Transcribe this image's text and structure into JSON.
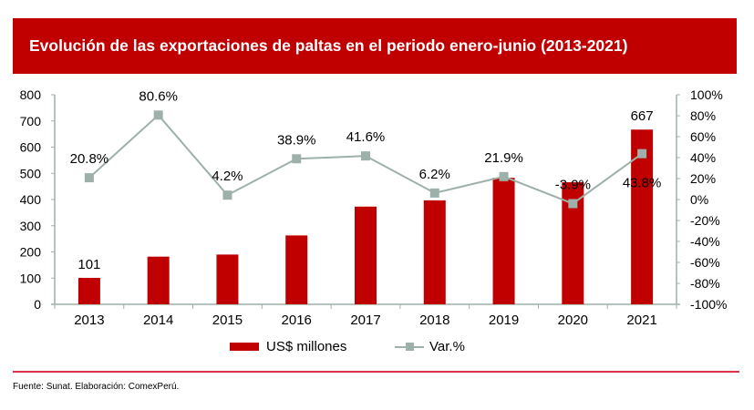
{
  "header": {
    "title": "Evolución de las exportaciones de paltas en el periodo enero-junio (2013-2021)"
  },
  "legend": {
    "bar_label": "US$ millones",
    "line_label": "Var.%"
  },
  "footer": {
    "source": "Fuente: Sunat. Elaboración: ComexPerú."
  },
  "colors": {
    "bar": "#C00000",
    "line": "#9EB0AA",
    "banner": "#C00000",
    "separator": "#E0304A"
  },
  "chart_data": {
    "type": "bar+line",
    "title": "Evolución de las exportaciones de paltas en el periodo enero-junio (2013-2021)",
    "categories": [
      "2013",
      "2014",
      "2015",
      "2016",
      "2017",
      "2018",
      "2019",
      "2020",
      "2021"
    ],
    "series": [
      {
        "name": "US$ millones",
        "type": "bar",
        "axis": "left",
        "values": [
          101,
          182,
          190,
          263,
          373,
          397,
          483,
          466,
          667
        ],
        "data_labels": [
          "101",
          "",
          "",
          "",
          "",
          "",
          "",
          "",
          "667"
        ]
      },
      {
        "name": "Var.%",
        "type": "line",
        "axis": "right",
        "values": [
          20.8,
          80.6,
          4.2,
          38.9,
          41.6,
          6.2,
          21.9,
          -3.9,
          43.8
        ],
        "data_labels": [
          "20.8%",
          "80.6%",
          "4.2%",
          "38.9%",
          "41.6%",
          "6.2%",
          "21.9%",
          "-3.9%",
          "43.8%"
        ]
      }
    ],
    "y_left": {
      "label": "",
      "range": [
        0,
        800
      ],
      "ticks": [
        "0",
        "100",
        "200",
        "300",
        "400",
        "500",
        "600",
        "700",
        "800"
      ],
      "tick_values": [
        0,
        100,
        200,
        300,
        400,
        500,
        600,
        700,
        800
      ]
    },
    "y_right": {
      "label": "",
      "range": [
        -100,
        100
      ],
      "ticks": [
        "-100%",
        "-80%",
        "-60%",
        "-40%",
        "-20%",
        "0%",
        "20%",
        "40%",
        "60%",
        "80%",
        "100%"
      ],
      "tick_values": [
        -100,
        -80,
        -60,
        -40,
        -20,
        0,
        20,
        40,
        60,
        80,
        100
      ]
    },
    "xlabel": "",
    "grid": false,
    "legend_position": "bottom"
  }
}
